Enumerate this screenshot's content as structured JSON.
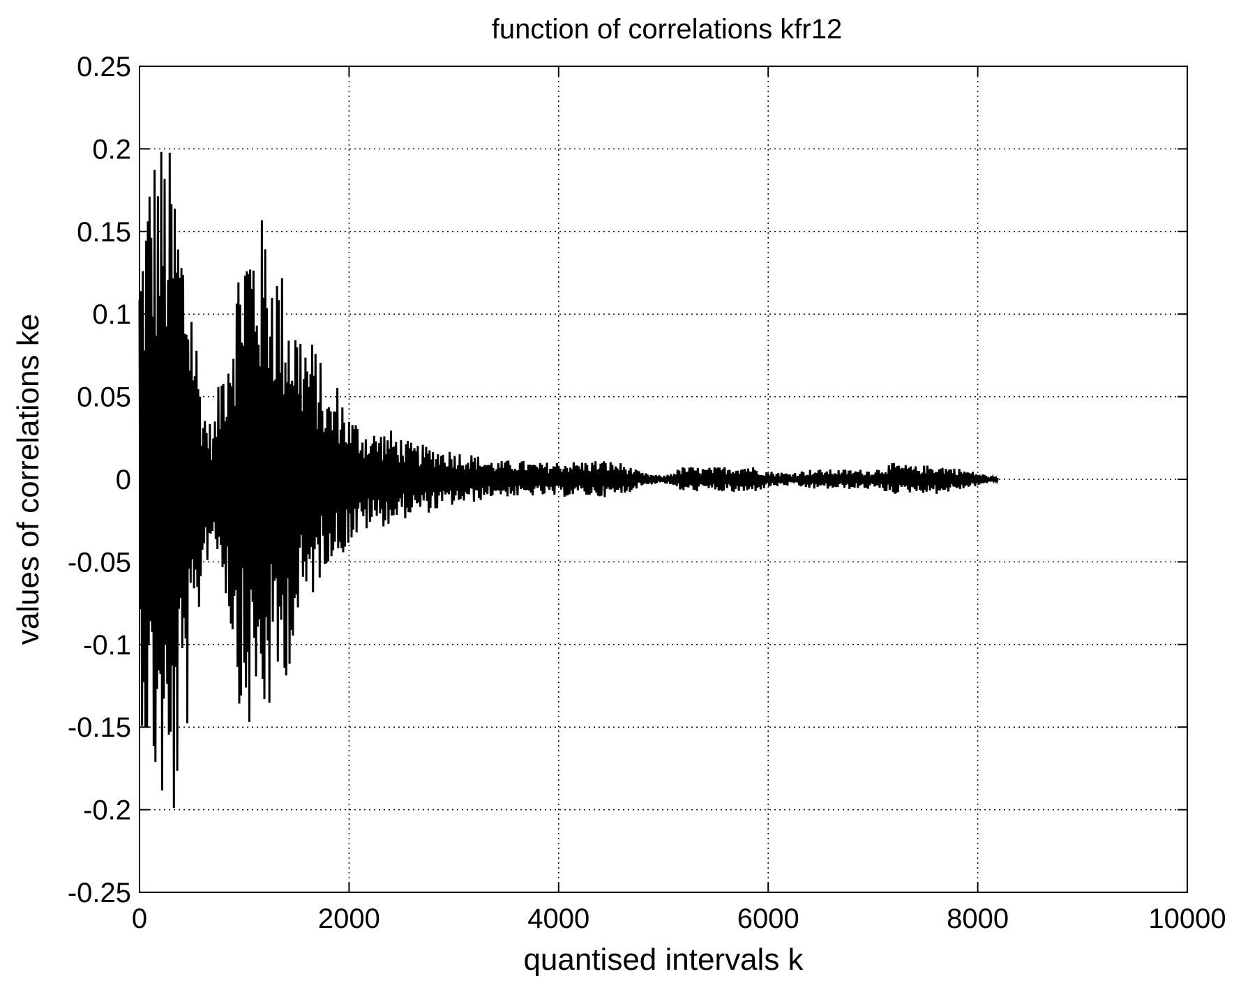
{
  "chart_data": {
    "type": "line",
    "title": "function of correlations kfr12",
    "xlabel": "quantised intervals k",
    "ylabel": "values of correlations ke",
    "xlim": [
      0,
      10000
    ],
    "ylim": [
      -0.25,
      0.25
    ],
    "grid": true,
    "xticks": [
      0,
      2000,
      4000,
      6000,
      8000,
      10000
    ],
    "xtick_labels": [
      "0",
      "2000",
      "4000",
      "6000",
      "8000",
      "10000"
    ],
    "yticks": [
      0.25,
      0.2,
      0.15,
      0.1,
      0.05,
      0,
      -0.05,
      -0.1,
      -0.15,
      -0.2,
      -0.25
    ],
    "ytick_labels": [
      "0.25",
      "0.2",
      "0.15",
      "0.1",
      "0.05",
      "0",
      "-0.05",
      "-0.1",
      "-0.15",
      "-0.2",
      "-0.25"
    ],
    "line_color": "#000000",
    "series": [
      {
        "x_start": 0,
        "x_end": 8192,
        "envelope": {
          "k": [
            0,
            100,
            200,
            300,
            400,
            500,
            600,
            700,
            800,
            900,
            1000,
            1100,
            1200,
            1300,
            1400,
            1500,
            1600,
            1700,
            1800,
            1900,
            2000,
            2200,
            2400,
            2600,
            2800,
            3000,
            3200,
            3400,
            3600,
            3800,
            4000,
            4200,
            4400,
            4600,
            4800,
            5000,
            5200,
            5400,
            5600,
            5800,
            6000,
            6200,
            6400,
            6600,
            6800,
            7000,
            7200,
            7400,
            7600,
            7800,
            8000,
            8192
          ],
          "max": [
            0.14,
            0.2,
            0.21,
            0.2,
            0.16,
            0.12,
            0.05,
            0.03,
            0.08,
            0.12,
            0.16,
            0.16,
            0.16,
            0.14,
            0.12,
            0.1,
            0.09,
            0.08,
            0.05,
            0.06,
            0.04,
            0.03,
            0.03,
            0.022,
            0.02,
            0.018,
            0.015,
            0.011,
            0.012,
            0.01,
            0.011,
            0.011,
            0.012,
            0.01,
            0.004,
            0.002,
            0.008,
            0.007,
            0.008,
            0.009,
            0.005,
            0.004,
            0.006,
            0.006,
            0.006,
            0.006,
            0.01,
            0.008,
            0.009,
            0.007,
            0.004,
            0.001
          ],
          "min": [
            -0.14,
            -0.18,
            -0.2,
            -0.235,
            -0.17,
            -0.14,
            -0.06,
            -0.04,
            -0.06,
            -0.11,
            -0.16,
            -0.15,
            -0.15,
            -0.14,
            -0.12,
            -0.1,
            -0.08,
            -0.065,
            -0.05,
            -0.05,
            -0.04,
            -0.03,
            -0.028,
            -0.022,
            -0.02,
            -0.016,
            -0.014,
            -0.01,
            -0.011,
            -0.01,
            -0.011,
            -0.01,
            -0.011,
            -0.01,
            -0.004,
            -0.002,
            -0.008,
            -0.007,
            -0.008,
            -0.009,
            -0.005,
            -0.004,
            -0.006,
            -0.006,
            -0.006,
            -0.006,
            -0.009,
            -0.008,
            -0.009,
            -0.007,
            -0.004,
            -0.001
          ]
        }
      }
    ]
  }
}
